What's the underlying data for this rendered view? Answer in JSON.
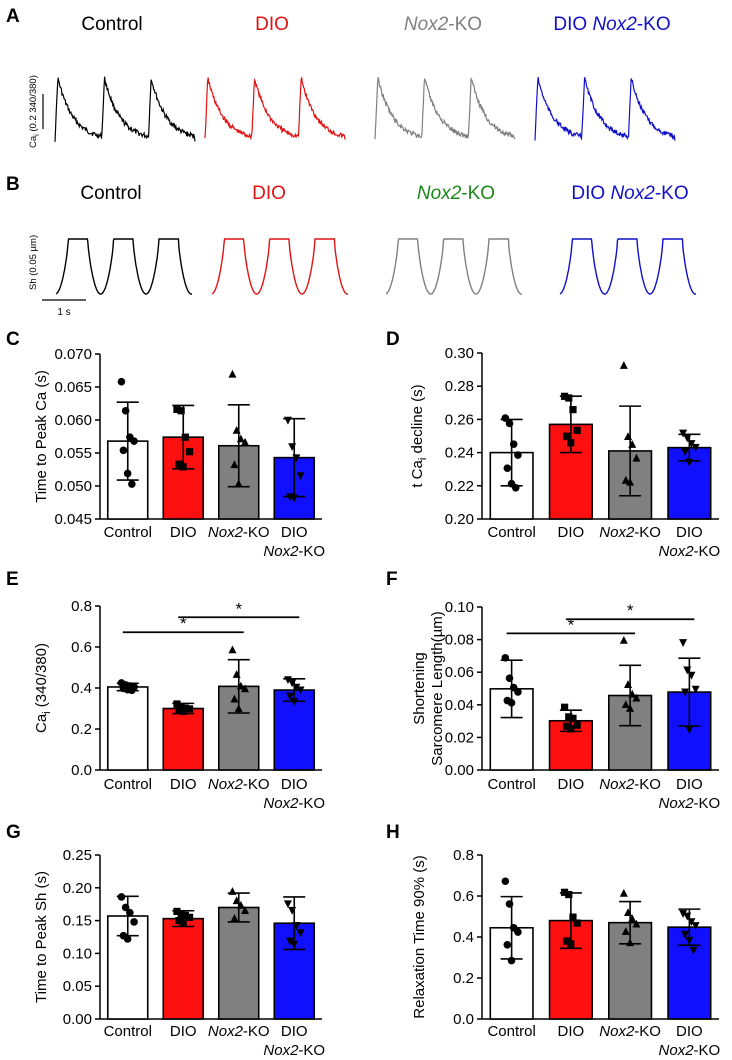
{
  "panel_letters": [
    "A",
    "B",
    "C",
    "D",
    "E",
    "F",
    "G",
    "H"
  ],
  "groups": [
    "Control",
    "DIO",
    "Nox2-KO",
    "DIO Nox2-KO"
  ],
  "colors": {
    "Control": "#000000",
    "DIO": "#e11212",
    "Nox2-KO": "#808080",
    "DIO Nox2-KO": "#1010c8",
    "Nox2-KO label B": "#1a8a1a"
  },
  "trace_panels": [
    {
      "panel": "A",
      "titles": [
        "Control",
        "DIO",
        "Nox2-KO",
        "DIO Nox2-KO"
      ],
      "title_colors": [
        "#000000",
        "#e11212",
        "#808080",
        "#1010c8"
      ],
      "scale_label": "Ca",
      "scale_label_sub": "i",
      "scale_label_rest": " (0.2 340/380)"
    },
    {
      "panel": "B",
      "titles": [
        "Control",
        "DIO",
        "Nox2-KO",
        "DIO Nox2-KO"
      ],
      "title_colors": [
        "#000000",
        "#e11212",
        "#1a8a1a",
        "#1010c8"
      ],
      "scale_label": "Sh (0.05 µm)",
      "time_scale": "1 s"
    }
  ],
  "chart_data": [
    {
      "panel": "C",
      "type": "bar",
      "categories": [
        "Control",
        "DIO",
        "Nox2-KO",
        "DIO Nox2-KO"
      ],
      "values": [
        0.0568,
        0.0574,
        0.0561,
        0.0543
      ],
      "sd": [
        0.0059,
        0.0048,
        0.0062,
        0.0059
      ],
      "points": [
        [
          0.0658,
          0.0614,
          0.0574,
          0.0568,
          0.0554,
          0.0519,
          0.0503
        ],
        [
          0.0616,
          0.0614,
          0.0574,
          0.0552,
          0.0533,
          0.0529
        ],
        [
          0.0669,
          0.0584,
          0.0571,
          0.0566,
          0.0532,
          0.0503
        ],
        [
          0.06,
          0.056,
          0.0543,
          0.0516,
          0.0484,
          0.0482
        ]
      ],
      "markers": [
        "circle",
        "square",
        "triangle",
        "triangle-down"
      ],
      "ylabel": "Time to Peak Ca (s)",
      "ylim": [
        0.045,
        0.07
      ],
      "yticks": [
        "0.045",
        "0.050",
        "0.055",
        "0.060",
        "0.065",
        "0.070"
      ],
      "significance": []
    },
    {
      "panel": "D",
      "type": "bar",
      "categories": [
        "Control",
        "DIO",
        "Nox2-KO",
        "DIO Nox2-KO"
      ],
      "values": [
        0.24,
        0.257,
        0.241,
        0.243
      ],
      "sd": [
        0.02,
        0.017,
        0.027,
        0.008
      ],
      "points": [
        [
          0.2608,
          0.2576,
          0.2451,
          0.2385,
          0.2306,
          0.2213,
          0.2188
        ],
        [
          0.2739,
          0.2729,
          0.2659,
          0.2534,
          0.2499,
          0.2459
        ],
        [
          0.2924,
          0.2495,
          0.2448,
          0.2365,
          0.2232,
          0.222
        ],
        [
          0.2519,
          0.249,
          0.2456,
          0.2433,
          0.2408,
          0.2344
        ]
      ],
      "markers": [
        "circle",
        "square",
        "triangle",
        "triangle-down"
      ],
      "ylabel": "t Ca decline (s)",
      "ylabel_parts": [
        "t Ca",
        "i",
        " decline (s)"
      ],
      "ylim": [
        0.2,
        0.3
      ],
      "yticks": [
        "0.20",
        "0.22",
        "0.24",
        "0.26",
        "0.28",
        "0.30"
      ],
      "significance": []
    },
    {
      "panel": "E",
      "type": "bar",
      "categories": [
        "Control",
        "DIO",
        "Nox2-KO",
        "DIO Nox2-KO"
      ],
      "values": [
        0.405,
        0.3,
        0.408,
        0.39
      ],
      "sd": [
        0.018,
        0.025,
        0.13,
        0.055
      ],
      "points": [
        [
          0.425,
          0.415,
          0.41,
          0.405,
          0.398,
          0.392,
          0.389
        ],
        [
          0.322,
          0.31,
          0.302,
          0.298,
          0.291,
          0.286
        ],
        [
          0.585,
          0.465,
          0.408,
          0.395,
          0.345,
          0.298
        ],
        [
          0.442,
          0.426,
          0.405,
          0.392,
          0.362,
          0.335
        ]
      ],
      "markers": [
        "circle",
        "square",
        "triangle",
        "triangle-down"
      ],
      "ylabel": "Ca (340/380)",
      "ylabel_parts": [
        "Ca",
        "i",
        " (340/380)"
      ],
      "ylim": [
        0.0,
        0.8
      ],
      "yticks": [
        "0.0",
        "0.2",
        "0.4",
        "0.6",
        "0.8"
      ],
      "significance": [
        {
          "from": 0,
          "to": 2,
          "y": 0.672,
          "label": "*"
        },
        {
          "from": 1,
          "to": 3,
          "y": 0.745,
          "label": "*"
        }
      ]
    },
    {
      "panel": "F",
      "type": "bar",
      "categories": [
        "Control",
        "DIO",
        "Nox2-KO",
        "DIO Nox2-KO"
      ],
      "values": [
        0.0498,
        0.0302,
        0.0457,
        0.0478
      ],
      "sd": [
        0.0176,
        0.0065,
        0.0185,
        0.0208
      ],
      "points": [
        [
          0.0688,
          0.0563,
          0.0506,
          0.0479,
          0.0426,
          0.0412
        ],
        [
          0.0385,
          0.0326,
          0.0317,
          0.0275,
          0.0268,
          0.0253
        ],
        [
          0.0794,
          0.0523,
          0.0464,
          0.044,
          0.04,
          0.0377
        ],
        [
          0.0783,
          0.0615,
          0.0583,
          0.0497,
          0.048,
          0.025
        ]
      ],
      "markers": [
        "circle",
        "square",
        "triangle",
        "triangle-down"
      ],
      "ylabel": "Shortening",
      "ylabel2": "Sarcomere Length(µm)",
      "ylim": [
        0.0,
        0.1
      ],
      "yticks": [
        "0.00",
        "0.02",
        "0.04",
        "0.06",
        "0.08",
        "0.10"
      ],
      "significance": [
        {
          "from": 0,
          "to": 2,
          "y": 0.0838,
          "label": "*"
        },
        {
          "from": 1,
          "to": 3,
          "y": 0.0925,
          "label": "*"
        }
      ]
    },
    {
      "panel": "G",
      "type": "bar",
      "categories": [
        "Control",
        "DIO",
        "Nox2-KO",
        "DIO Nox2-KO"
      ],
      "values": [
        0.157,
        0.153,
        0.17,
        0.146
      ],
      "sd": [
        0.03,
        0.012,
        0.022,
        0.04
      ],
      "points": [
        [
          0.186,
          0.17,
          0.162,
          0.148,
          0.127,
          0.122
        ],
        [
          0.164,
          0.16,
          0.158,
          0.155,
          0.15,
          0.146
        ],
        [
          0.194,
          0.18,
          0.173,
          0.165,
          0.153
        ],
        [
          0.176,
          0.166,
          0.143,
          0.132,
          0.119,
          0.114
        ]
      ],
      "markers": [
        "circle",
        "square",
        "triangle",
        "triangle-down"
      ],
      "ylabel": "Time to Peak Sh (s)",
      "ylim": [
        0.0,
        0.25
      ],
      "yticks": [
        "0.00",
        "0.05",
        "0.10",
        "0.15",
        "0.20",
        "0.25"
      ],
      "significance": []
    },
    {
      "panel": "H",
      "type": "bar",
      "categories": [
        "Control",
        "DIO",
        "Nox2-KO",
        "DIO Nox2-KO"
      ],
      "values": [
        0.445,
        0.48,
        0.47,
        0.448
      ],
      "sd": [
        0.152,
        0.135,
        0.103,
        0.088
      ],
      "points": [
        [
          0.672,
          0.561,
          0.445,
          0.424,
          0.362,
          0.285
        ],
        [
          0.618,
          0.607,
          0.497,
          0.468,
          0.38,
          0.367
        ],
        [
          0.612,
          0.518,
          0.488,
          0.462,
          0.426,
          0.371
        ],
        [
          0.516,
          0.503,
          0.476,
          0.457,
          0.415,
          0.385,
          0.337
        ]
      ],
      "markers": [
        "circle",
        "square",
        "triangle",
        "triangle-down"
      ],
      "ylabel": "Relaxation Time 90% (s)",
      "ylim": [
        0.0,
        0.8
      ],
      "yticks": [
        "0.0",
        "0.2",
        "0.4",
        "0.6",
        "0.8"
      ],
      "significance": []
    }
  ]
}
